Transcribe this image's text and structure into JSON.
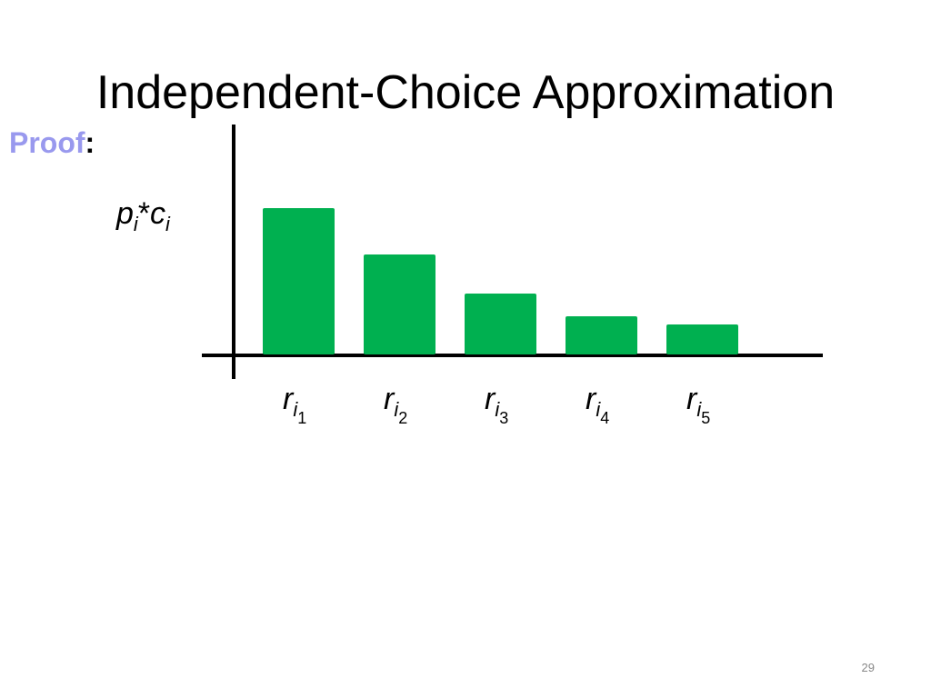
{
  "chart_data": {
    "type": "bar",
    "title": "Independent-Choice Approximation",
    "proof_label": "Proof",
    "proof_colon": ":",
    "ylabel": {
      "base1": "p",
      "sub1": "i",
      "op": "*",
      "base2": "c",
      "sub2": "i"
    },
    "x_symbol": "r",
    "x_subscript": "i",
    "categories": [
      "1",
      "2",
      "3",
      "4",
      "5"
    ],
    "values": [
      161,
      110,
      67,
      42,
      33
    ],
    "color": "#00b050",
    "ylim": [
      0,
      253
    ],
    "grid": false,
    "page_number": "29"
  }
}
